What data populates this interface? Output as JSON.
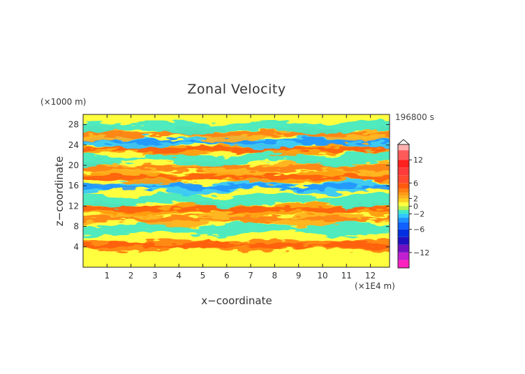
{
  "chart_data": {
    "type": "heatmap",
    "title": "Zonal Velocity",
    "xlabel": "x−coordinate",
    "ylabel": "z−coordinate",
    "x_unit": "(×1E4 m)",
    "y_unit": "(×1000 m)",
    "time_label": "196800 s",
    "xlim": [
      0,
      12.8
    ],
    "ylim": [
      0,
      30
    ],
    "x_ticks": [
      1,
      2,
      3,
      4,
      5,
      6,
      7,
      8,
      9,
      10,
      11,
      12
    ],
    "y_ticks": [
      4,
      8,
      12,
      16,
      20,
      24,
      28
    ],
    "grid": false,
    "colorbar": {
      "ticks": [
        {
          "value": 12,
          "label": "12"
        },
        {
          "value": 6,
          "label": "6"
        },
        {
          "value": 2,
          "label": "2"
        },
        {
          "value": 0,
          "label": "0"
        },
        {
          "value": -2,
          "label": "−2"
        },
        {
          "value": -6,
          "label": "−6"
        },
        {
          "value": -12,
          "label": "−12"
        }
      ],
      "levels": [
        {
          "value": 16,
          "color": "#ffb0b0"
        },
        {
          "value": 13,
          "color": "#ff5a5a"
        },
        {
          "value": 11,
          "color": "#ff2020"
        },
        {
          "value": 9,
          "color": "#ff3a3a"
        },
        {
          "value": 7,
          "color": "#ff4a30"
        },
        {
          "value": 5,
          "color": "#ff5a10"
        },
        {
          "value": 4,
          "color": "#ff7f10"
        },
        {
          "value": 3,
          "color": "#ff9a10"
        },
        {
          "value": 2.5,
          "color": "#ffb020"
        },
        {
          "value": 1.5,
          "color": "#ffd020"
        },
        {
          "value": 0.5,
          "color": "#ffff40"
        },
        {
          "value": -0.5,
          "color": "#b8f050"
        },
        {
          "value": -1.5,
          "color": "#40e8c8"
        },
        {
          "value": -2.5,
          "color": "#30c8ff"
        },
        {
          "value": -3.5,
          "color": "#1e90ff"
        },
        {
          "value": -5,
          "color": "#1060ff"
        },
        {
          "value": -7,
          "color": "#0030e0"
        },
        {
          "value": -9,
          "color": "#2010c0"
        },
        {
          "value": -11,
          "color": "#7010c0"
        },
        {
          "value": -13,
          "color": "#c020d0"
        },
        {
          "value": -15,
          "color": "#ff20c0"
        }
      ]
    },
    "field_bands": [
      {
        "z": 4.3,
        "value": 3.5
      },
      {
        "z": 7.5,
        "value": -1.5
      },
      {
        "z": 9.5,
        "value": 2.5
      },
      {
        "z": 11.4,
        "value": 3
      },
      {
        "z": 13.2,
        "value": -1.5
      },
      {
        "z": 15.8,
        "value": -2.5
      },
      {
        "z": 17.7,
        "value": 3
      },
      {
        "z": 19.5,
        "value": 2.5
      },
      {
        "z": 21.3,
        "value": -2
      },
      {
        "z": 23.2,
        "value": 3
      },
      {
        "z": 24.7,
        "value": -2.5
      },
      {
        "z": 26.2,
        "value": 2.5
      },
      {
        "z": 27.5,
        "value": -1.5
      }
    ]
  }
}
